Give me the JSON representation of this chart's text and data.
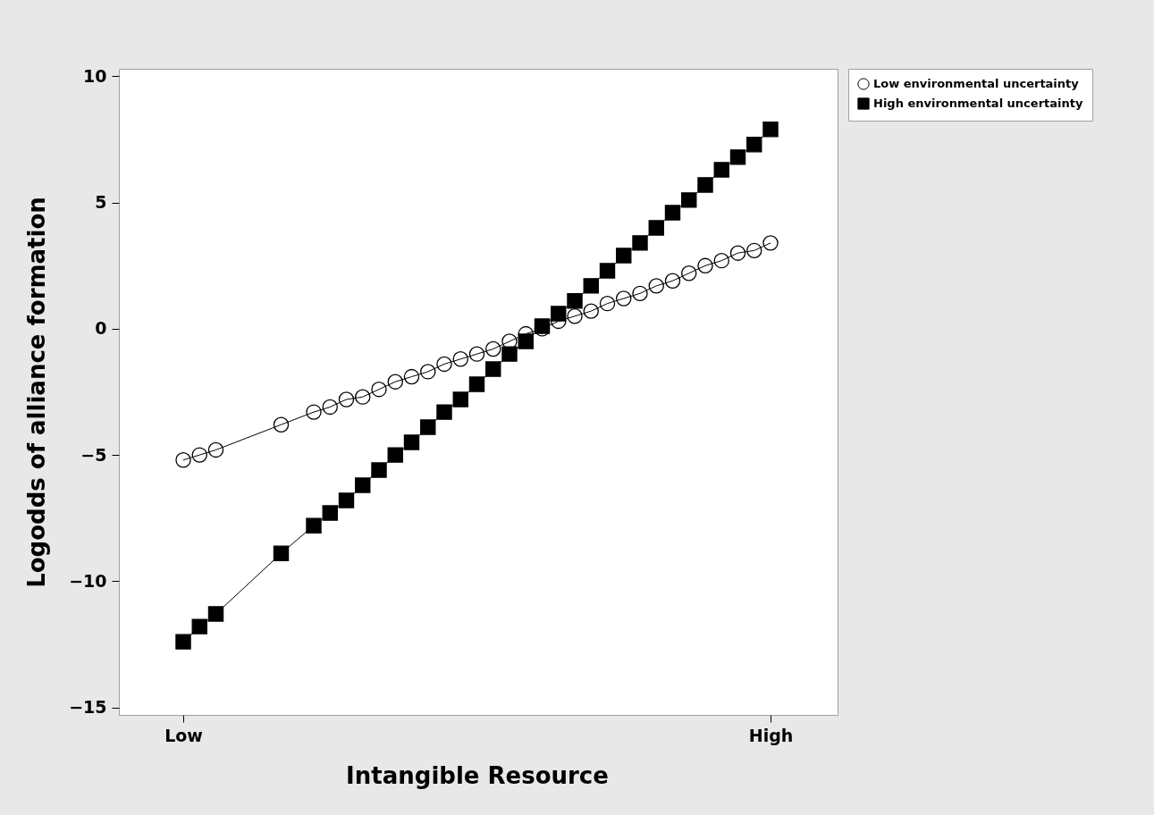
{
  "chart_data": {
    "type": "line",
    "xlabel": "Intangible Resource",
    "ylabel": "Logodds of alliance formation",
    "ylim": [
      -15.3,
      10.3
    ],
    "yticks": [
      -15,
      -10,
      -5,
      0,
      5,
      10
    ],
    "grid": false,
    "legend": "top right",
    "line_style": "solid",
    "categories": [
      "Low",
      null,
      null,
      null,
      null,
      null,
      null,
      null,
      null,
      null,
      null,
      null,
      null,
      null,
      null,
      null,
      null,
      null,
      null,
      null,
      null,
      null,
      null,
      null,
      null,
      null,
      null,
      null,
      null,
      null,
      null,
      null,
      null,
      null,
      null,
      null,
      "High"
    ],
    "series": [
      {
        "name": "Low environmental uncertainty",
        "color": "#000000",
        "marker": "circle",
        "values": [
          -5.2,
          -5.0,
          -4.8,
          null,
          null,
          null,
          -3.8,
          null,
          -3.3,
          -3.1,
          -2.8,
          -2.7,
          -2.4,
          -2.1,
          -1.9,
          -1.7,
          -1.4,
          -1.2,
          -1.0,
          -0.8,
          -0.5,
          -0.2,
          0.0,
          0.3,
          0.5,
          0.7,
          1.0,
          1.2,
          1.4,
          1.7,
          1.9,
          2.2,
          2.5,
          2.7,
          3.0,
          3.1,
          3.4
        ]
      },
      {
        "name": "High environmental uncertainty",
        "color": "#000000",
        "marker": "square",
        "values": [
          -12.4,
          -11.8,
          -11.3,
          null,
          null,
          null,
          -8.9,
          null,
          -7.8,
          -7.3,
          -6.8,
          -6.2,
          -5.6,
          -5.0,
          -4.5,
          -3.9,
          -3.3,
          -2.8,
          -2.2,
          -1.6,
          -1.0,
          -0.5,
          0.1,
          0.6,
          1.1,
          1.7,
          2.3,
          2.9,
          3.4,
          4.0,
          4.6,
          5.1,
          5.7,
          6.3,
          6.8,
          7.3,
          7.9
        ]
      }
    ]
  }
}
